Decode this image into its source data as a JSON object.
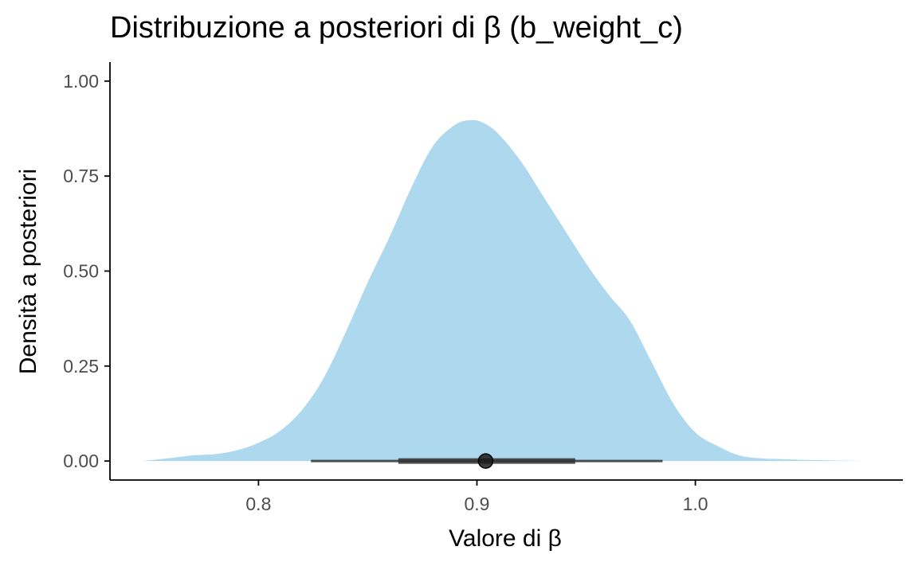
{
  "chart_data": {
    "type": "area",
    "title": "Distribuzione a posteriori di β (b_weight_c)",
    "xlabel": "Valore di β",
    "ylabel": "Densità a posteriori",
    "xlim": [
      0.732,
      1.095
    ],
    "ylim": [
      -0.05,
      1.05
    ],
    "x_ticks": [
      0.8,
      0.9,
      1.0
    ],
    "x_tick_labels": [
      "0.8",
      "0.9",
      "1.0"
    ],
    "y_ticks": [
      0.0,
      0.25,
      0.5,
      0.75,
      1.0
    ],
    "y_tick_labels": [
      "0.00",
      "0.25",
      "0.50",
      "0.75",
      "1.00"
    ],
    "grid": false,
    "legend": "none",
    "fill_color": "#add8ed",
    "interval_color": "#333333",
    "density": {
      "x": [
        0.747,
        0.76,
        0.77,
        0.78,
        0.79,
        0.8,
        0.81,
        0.82,
        0.83,
        0.84,
        0.85,
        0.86,
        0.87,
        0.88,
        0.89,
        0.897,
        0.903,
        0.91,
        0.92,
        0.93,
        0.94,
        0.95,
        0.96,
        0.97,
        0.98,
        0.99,
        1.0,
        1.01,
        1.02,
        1.03,
        1.04,
        1.05,
        1.06,
        1.07,
        1.078
      ],
      "y": [
        0.0,
        0.008,
        0.015,
        0.018,
        0.028,
        0.048,
        0.08,
        0.135,
        0.22,
        0.34,
        0.47,
        0.59,
        0.72,
        0.83,
        0.885,
        0.897,
        0.89,
        0.86,
        0.79,
        0.7,
        0.61,
        0.52,
        0.44,
        0.37,
        0.26,
        0.15,
        0.075,
        0.04,
        0.015,
        0.007,
        0.005,
        0.003,
        0.002,
        0.001,
        0.0
      ]
    },
    "point_estimate": 0.904,
    "interval_inner": [
      0.864,
      0.945
    ],
    "interval_outer": [
      0.824,
      0.985
    ]
  }
}
